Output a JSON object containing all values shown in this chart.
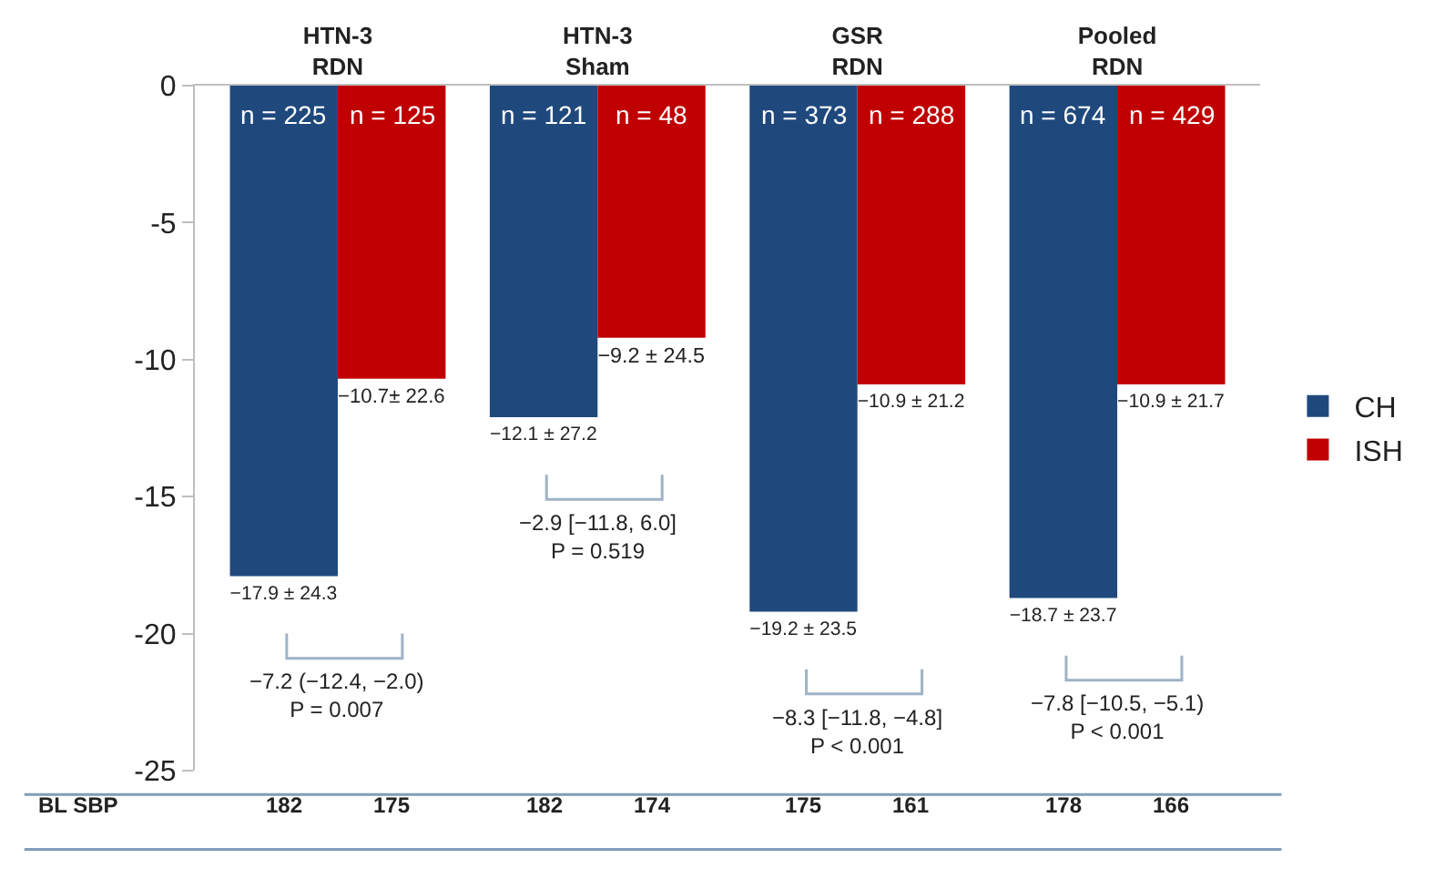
{
  "chart_data": {
    "type": "bar",
    "categories": [
      "HTN-3\nRDN",
      "HTN-3\nSham",
      "GSR\nRDN",
      "Pooled\nRDN"
    ],
    "series": [
      {
        "name": "CH",
        "color": "#1f497d",
        "values": [
          -17.9,
          -12.1,
          -19.2,
          -18.7
        ],
        "value_labels": [
          "−17.9 ± 24.3",
          "−12.1 ± 27.2",
          "−19.2 ± 23.5",
          "−18.7 ± 23.7"
        ]
      },
      {
        "name": "ISH",
        "color": "#c00000",
        "values": [
          -10.7,
          -9.2,
          -10.9,
          -10.9
        ],
        "value_labels": [
          "−10.7± 22.6",
          "−9.2 ± 24.5",
          "−10.9 ± 21.2",
          "−10.9 ± 21.7"
        ]
      }
    ],
    "ylim": [
      -25,
      0
    ],
    "yticks": [
      -25,
      -20,
      -15,
      -10,
      -5,
      0
    ],
    "legend": "right",
    "annotations": [
      "n = 225",
      "n = 125",
      "n = 121",
      "n = 48",
      "n = 373",
      "n = 288",
      "n = 674",
      "n = 429",
      "−7.2 (−12.4, −2.0)\nP = 0.007",
      "−2.9 [−11.8, 6.0]\nP = 0.519",
      "−8.3 [−11.8, −4.8]\nP < 0.001",
      "−7.8 [−10.5, −5.1)\nP < 0.001",
      "BL SBP",
      "182",
      "175",
      "182",
      "174",
      "175",
      "161",
      "178",
      "166"
    ]
  }
}
